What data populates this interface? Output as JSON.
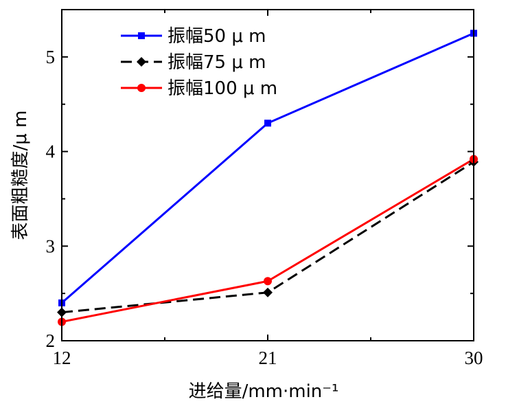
{
  "chart_data": {
    "type": "line",
    "x": [
      12,
      21,
      30
    ],
    "x_tick_labels": [
      "12",
      "21",
      "30"
    ],
    "xlim": [
      12,
      30
    ],
    "y_tick_labels": [
      "2",
      "3",
      "4",
      "5"
    ],
    "ylim": [
      2,
      5.5
    ],
    "xlabel": "进给量/mm·min⁻¹",
    "ylabel": "表面粗糙度/μ m",
    "grid": false,
    "legend_position": "top-left",
    "series": [
      {
        "name": "振幅50 μ m",
        "values": [
          2.4,
          4.3,
          5.25
        ],
        "color": "#0000ff",
        "marker": "square",
        "dash": "solid"
      },
      {
        "name": "振幅75 μ m",
        "values": [
          2.3,
          2.51,
          3.89
        ],
        "color": "#000000",
        "marker": "diamond",
        "dash": "dashed"
      },
      {
        "name": "振幅100 μ m",
        "values": [
          2.2,
          2.63,
          3.92
        ],
        "color": "#ff0000",
        "marker": "circle",
        "dash": "solid"
      }
    ]
  }
}
